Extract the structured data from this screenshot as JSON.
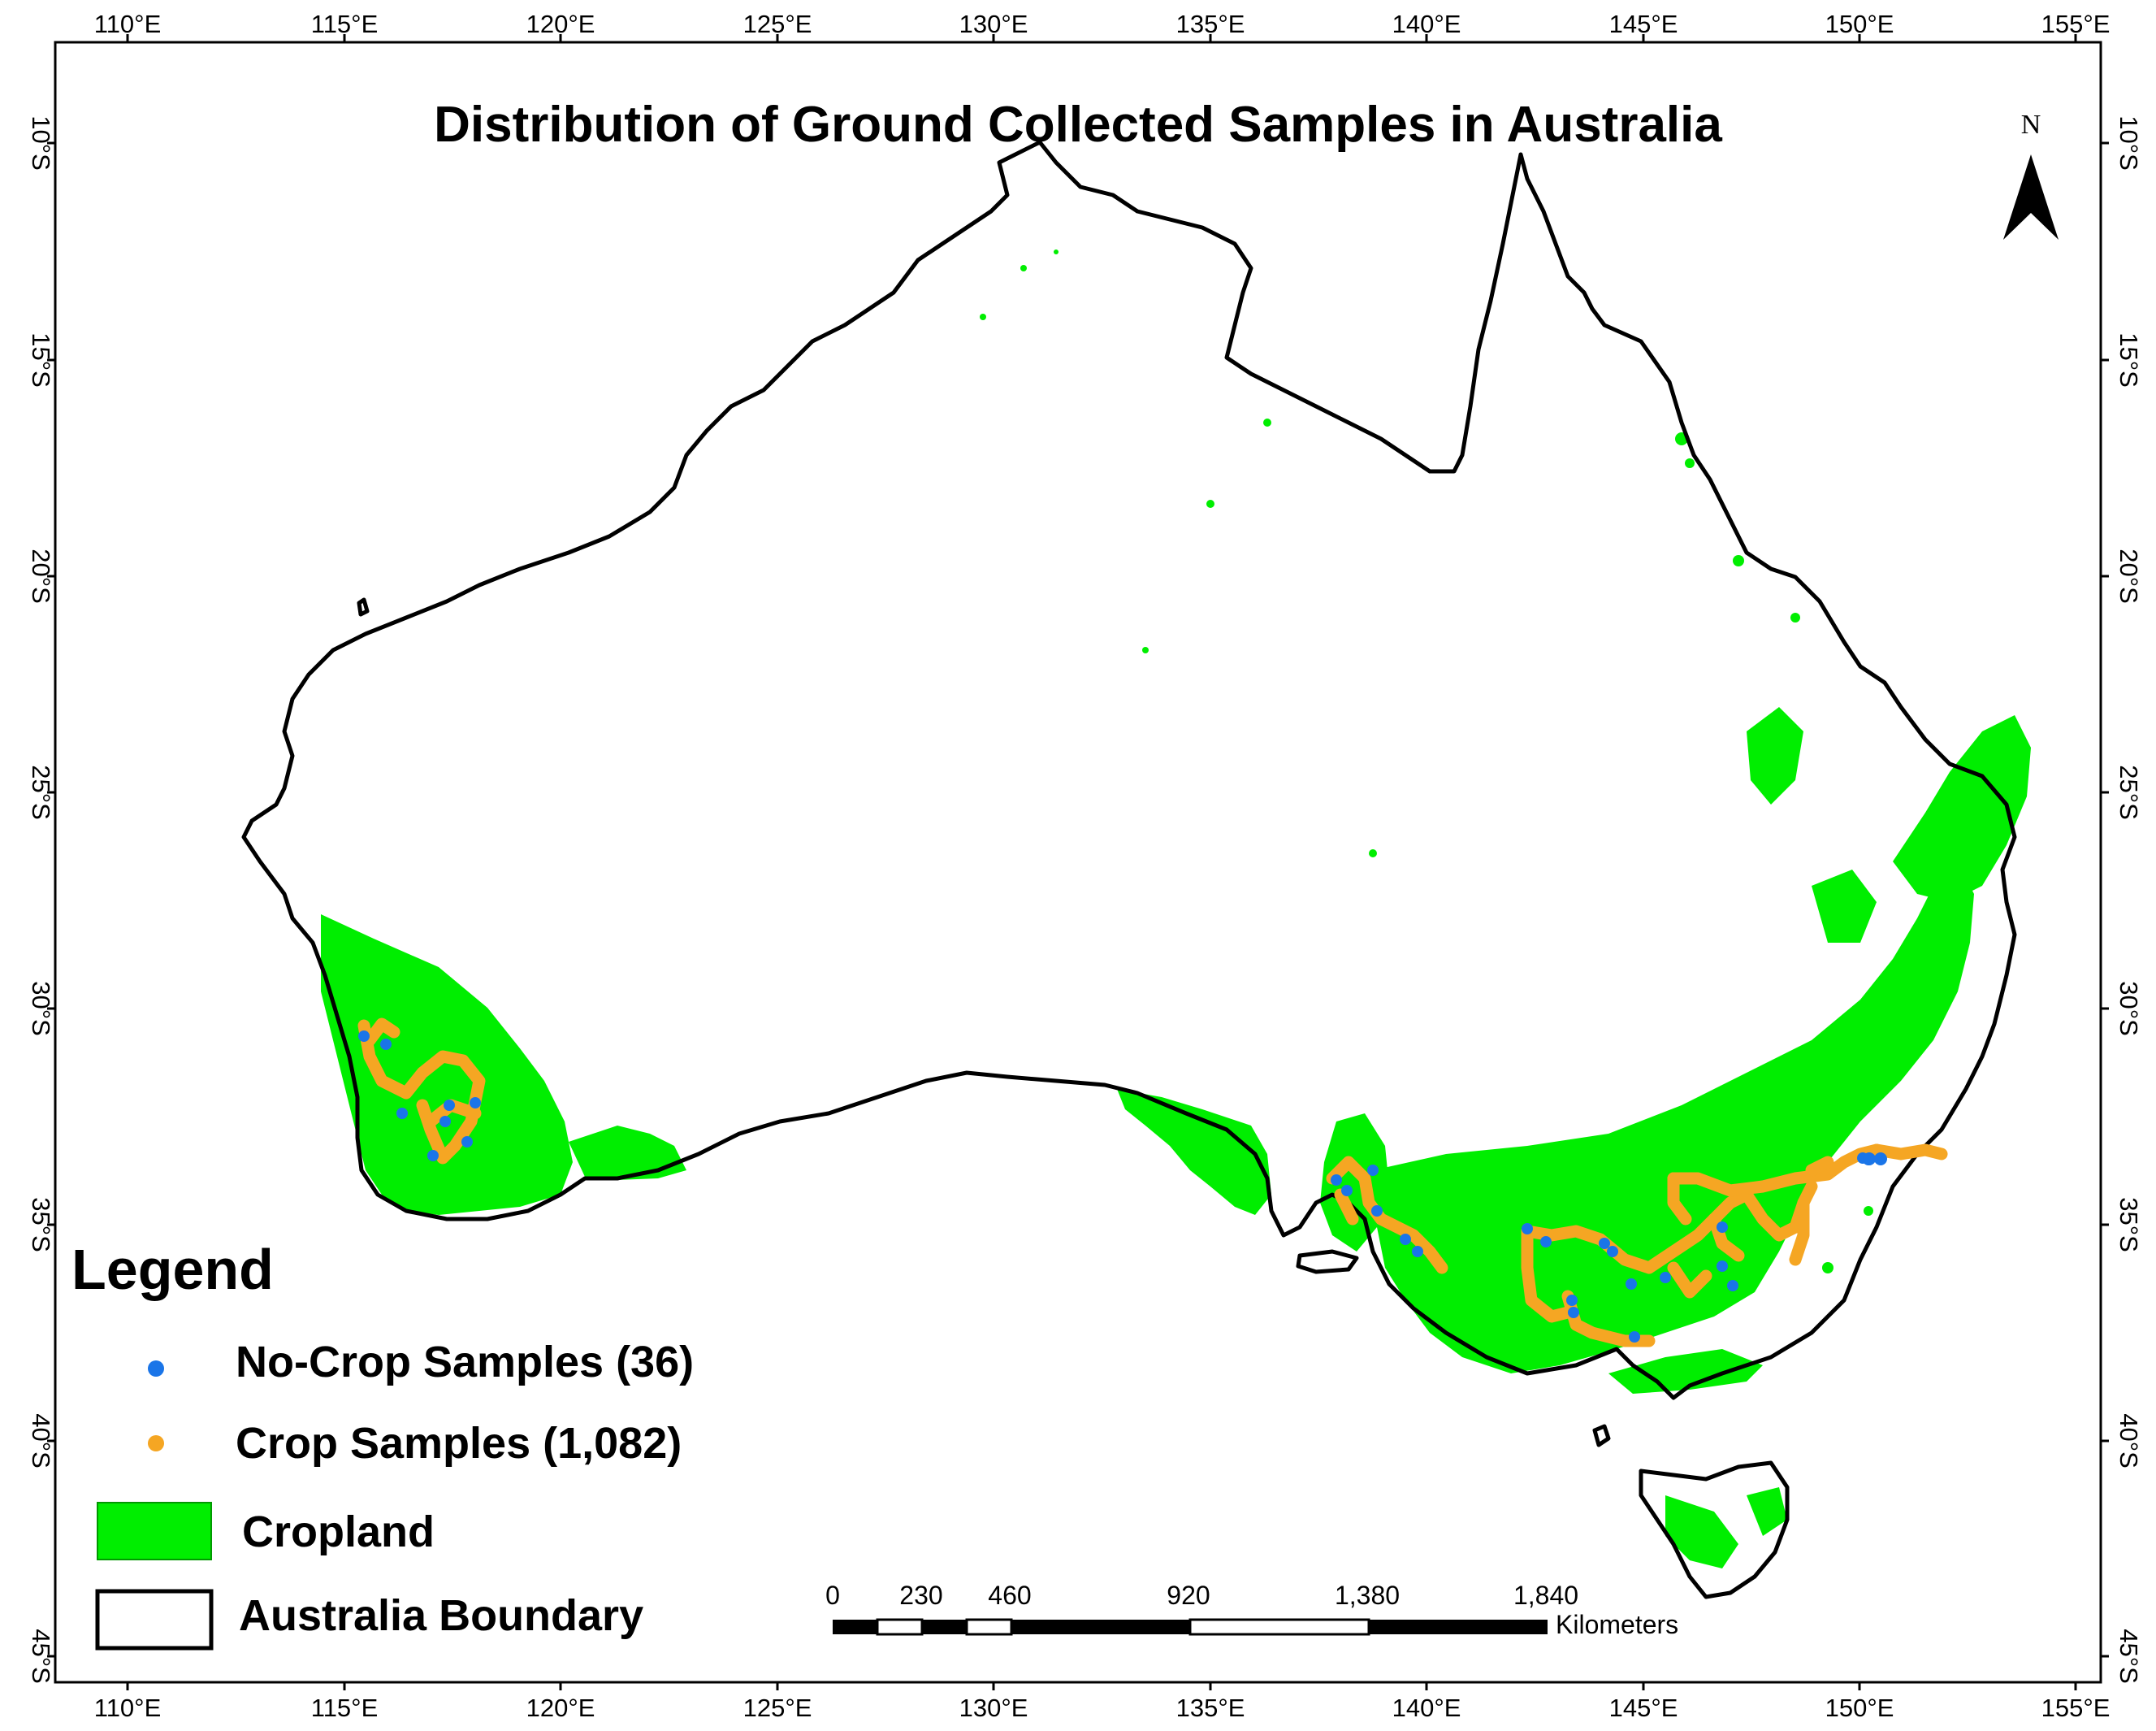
{
  "title": "Distribution of Ground Collected Samples in Australia",
  "north_arrow": {
    "label": "N",
    "icon": "north-arrow-icon"
  },
  "axes": {
    "lon_ticks": [
      "110°E",
      "115°E",
      "120°E",
      "125°E",
      "130°E",
      "135°E",
      "140°E",
      "145°E",
      "150°E",
      "155°E"
    ],
    "lat_ticks": [
      "10°S",
      "15°S",
      "20°S",
      "25°S",
      "30°S",
      "35°S",
      "40°S",
      "45°S"
    ],
    "lon_range": [
      110,
      155
    ],
    "lat_range": [
      -10,
      -45
    ]
  },
  "legend": {
    "title": "Legend",
    "items": [
      {
        "label": "No-Crop Samples (36)",
        "symbol": "dot",
        "color": "#1a75e8"
      },
      {
        "label": "Crop Samples (1,082)",
        "symbol": "dot",
        "color": "#f5a623"
      },
      {
        "label": "Cropland",
        "symbol": "fill",
        "color": "#00ee00"
      },
      {
        "label": "Australia Boundary",
        "symbol": "outline",
        "color": "#000000"
      }
    ]
  },
  "scale_bar": {
    "labels": [
      "0",
      "230",
      "460",
      "920",
      "1,380",
      "1,840"
    ],
    "unit": "Kilometers"
  },
  "colors": {
    "cropland": "#00ee00",
    "no_crop": "#1a75e8",
    "crop": "#f5a623",
    "boundary": "#000000"
  }
}
